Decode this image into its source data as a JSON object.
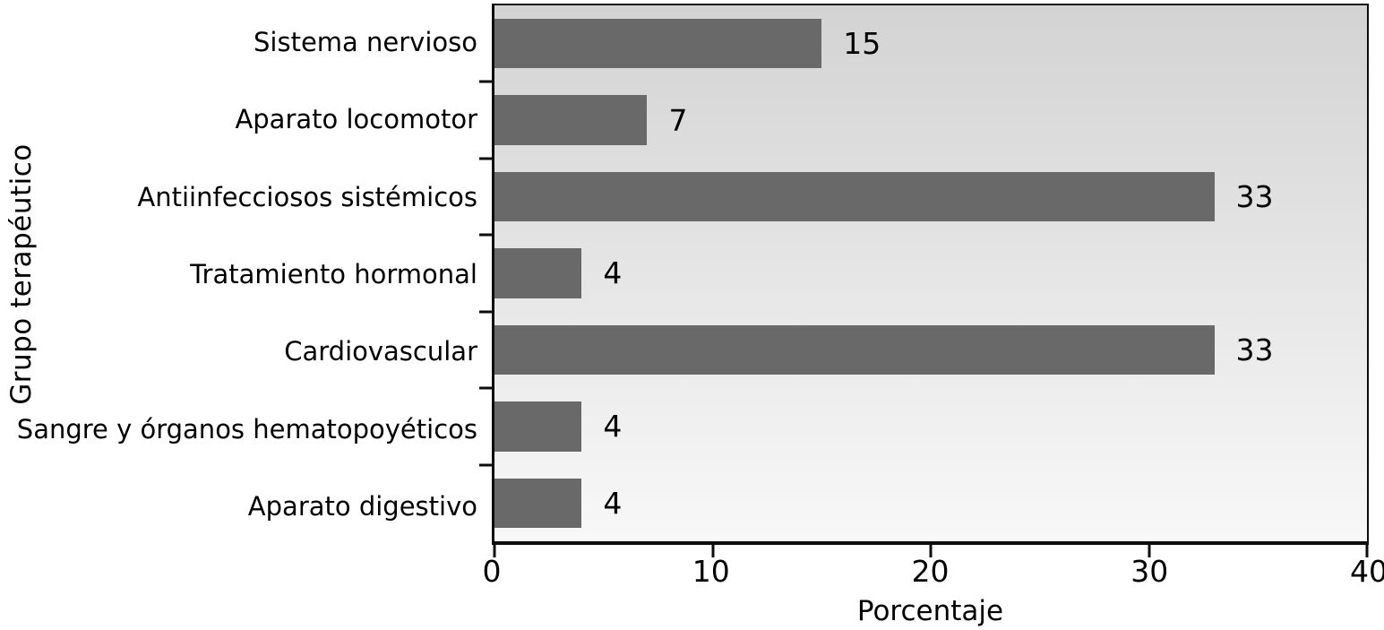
{
  "chart_data": {
    "type": "bar",
    "orientation": "horizontal",
    "title": "",
    "xlabel": "Porcentaje",
    "ylabel": "Grupo terapéutico",
    "categories": [
      "Sistema nervioso",
      "Aparato locomotor",
      "Antiinfecciosos sistémicos",
      "Tratamiento hormonal",
      "Cardiovascular",
      "Sangre y órganos hematopoyéticos",
      "Aparato digestivo"
    ],
    "values": [
      15,
      7,
      33,
      4,
      33,
      4,
      4
    ],
    "xlim": [
      0,
      40
    ],
    "xticks": [
      0,
      10,
      20,
      30,
      40
    ],
    "grid": false,
    "legend": "none",
    "bar_color": "#696969",
    "frame_color": "#0d0d0d",
    "plot_bg_top": "#d3d3d3",
    "plot_bg_bottom": "#f8f8f8"
  }
}
